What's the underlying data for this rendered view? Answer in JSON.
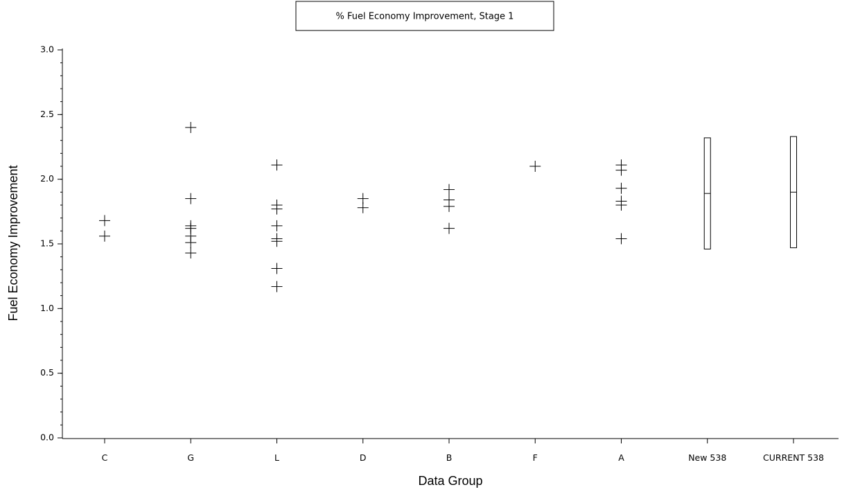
{
  "chart_data": {
    "type": "scatter",
    "title": "% Fuel Economy Improvement, Stage 1",
    "xlabel": "Data Group",
    "ylabel": "Fuel Economy Improvement",
    "ylim": [
      0,
      3
    ],
    "yticks": [
      "0.0",
      "0.5",
      "1.0",
      "1.5",
      "2.0",
      "2.5",
      "3.0"
    ],
    "yminor_step": 0.1,
    "grid": false,
    "categories": [
      "C",
      "G",
      "L",
      "D",
      "B",
      "F",
      "A",
      "New 538",
      "CURRENT 538"
    ],
    "points": [
      {
        "group": "C",
        "values": [
          1.68,
          1.56
        ]
      },
      {
        "group": "G",
        "values": [
          2.4,
          1.85,
          1.64,
          1.62,
          1.56,
          1.51,
          1.43
        ]
      },
      {
        "group": "L",
        "values": [
          2.11,
          1.8,
          1.77,
          1.64,
          1.54,
          1.52,
          1.31,
          1.17
        ]
      },
      {
        "group": "D",
        "values": [
          1.85,
          1.78
        ]
      },
      {
        "group": "B",
        "values": [
          1.92,
          1.84,
          1.79,
          1.62
        ]
      },
      {
        "group": "F",
        "values": [
          2.1
        ]
      },
      {
        "group": "A",
        "values": [
          2.11,
          2.07,
          1.93,
          1.83,
          1.8,
          1.54
        ]
      }
    ],
    "ranges": [
      {
        "group": "New 538",
        "low": 1.46,
        "mid": 1.89,
        "high": 2.32
      },
      {
        "group": "CURRENT 538",
        "low": 1.47,
        "mid": 1.9,
        "high": 2.33
      }
    ],
    "marker": "plus",
    "color": "#000000"
  }
}
